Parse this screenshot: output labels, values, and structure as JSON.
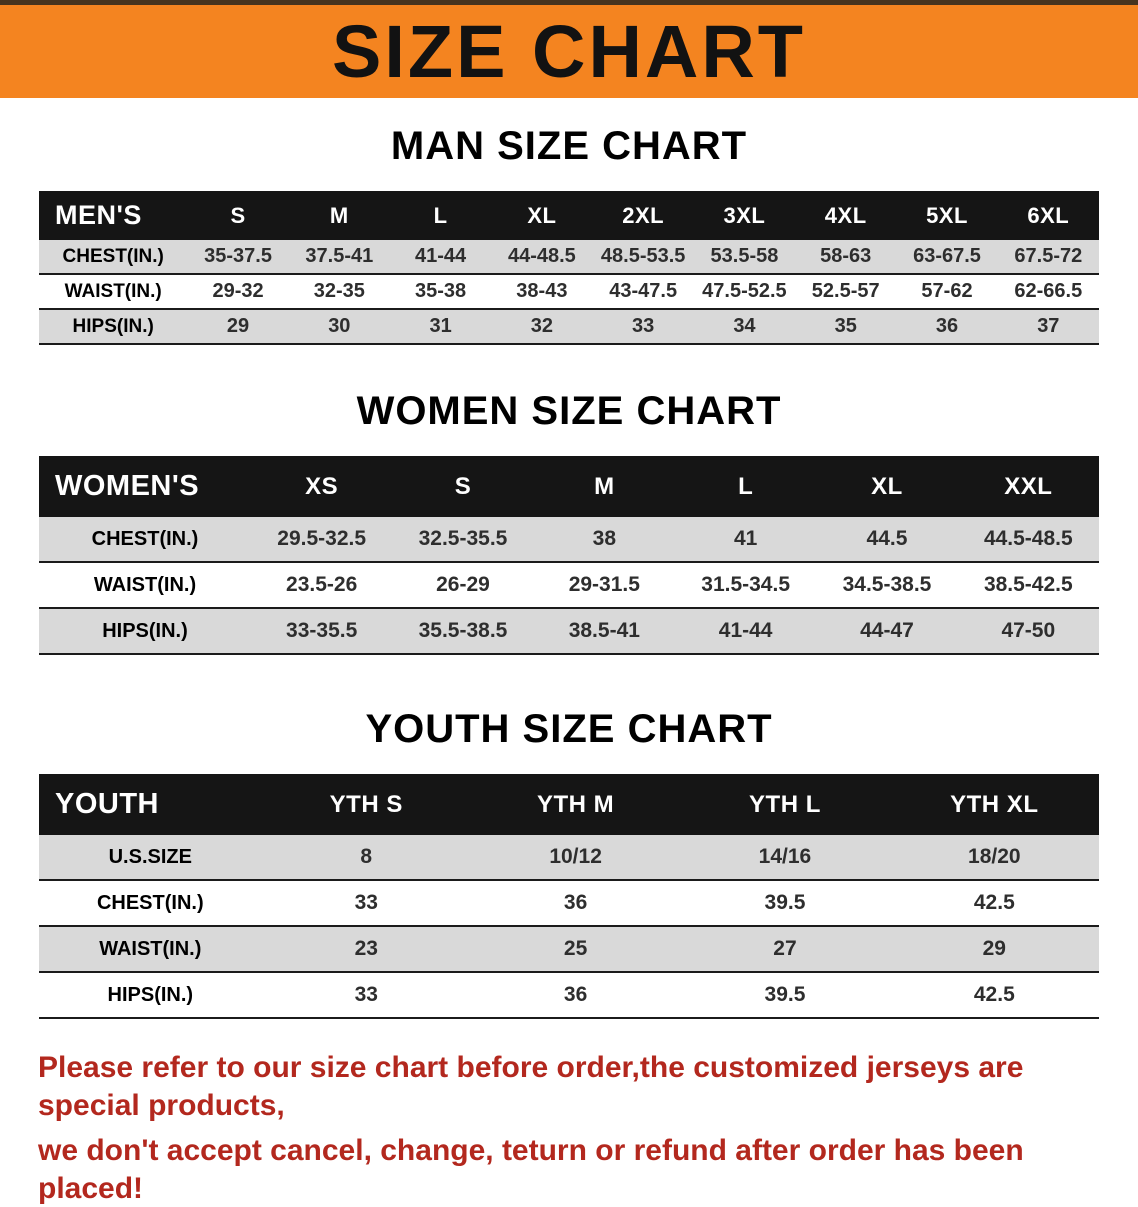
{
  "banner": {
    "title": "SIZE CHART"
  },
  "chart_data": [
    {
      "type": "table",
      "title": "MAN SIZE CHART",
      "header": [
        "MEN'S",
        "S",
        "M",
        "L",
        "XL",
        "2XL",
        "3XL",
        "4XL",
        "5XL",
        "6XL"
      ],
      "rows": [
        [
          "CHEST(IN.)",
          "35-37.5",
          "37.5-41",
          "41-44",
          "44-48.5",
          "48.5-53.5",
          "53.5-58",
          "58-63",
          "63-67.5",
          "67.5-72"
        ],
        [
          "WAIST(IN.)",
          "29-32",
          "32-35",
          "35-38",
          "38-43",
          "43-47.5",
          "47.5-52.5",
          "52.5-57",
          "57-62",
          "62-66.5"
        ],
        [
          "HIPS(IN.)",
          "29",
          "30",
          "31",
          "32",
          "33",
          "34",
          "35",
          "36",
          "37"
        ]
      ]
    },
    {
      "type": "table",
      "title": "WOMEN SIZE CHART",
      "header": [
        "WOMEN'S",
        "XS",
        "S",
        "M",
        "L",
        "XL",
        "XXL"
      ],
      "rows": [
        [
          "CHEST(IN.)",
          "29.5-32.5",
          "32.5-35.5",
          "38",
          "41",
          "44.5",
          "44.5-48.5"
        ],
        [
          "WAIST(IN.)",
          "23.5-26",
          "26-29",
          "29-31.5",
          "31.5-34.5",
          "34.5-38.5",
          "38.5-42.5"
        ],
        [
          "HIPS(IN.)",
          "33-35.5",
          "35.5-38.5",
          "38.5-41",
          "41-44",
          "44-47",
          "47-50"
        ]
      ]
    },
    {
      "type": "table",
      "title": "YOUTH SIZE CHART",
      "header": [
        "YOUTH",
        "YTH S",
        "YTH M",
        "YTH L",
        "YTH XL"
      ],
      "rows": [
        [
          "U.S.SIZE",
          "8",
          "10/12",
          "14/16",
          "18/20"
        ],
        [
          "CHEST(IN.)",
          "33",
          "36",
          "39.5",
          "42.5"
        ],
        [
          "WAIST(IN.)",
          "23",
          "25",
          "27",
          "29"
        ],
        [
          "HIPS(IN.)",
          "33",
          "36",
          "39.5",
          "42.5"
        ]
      ]
    }
  ],
  "footer": {
    "lines": [
      "Please refer to our size chart before order,the customized jerseys are special products,",
      "we don't accept cancel, change, teturn or refund after order has been placed!"
    ]
  },
  "colors": {
    "banner_bg": "#f48420",
    "table_header_bg": "#151515",
    "row_alt_bg": "#d9d9d9",
    "row_line": "#1b1b1b",
    "note_text": "#b3281e",
    "top_strip": "#46341f"
  }
}
